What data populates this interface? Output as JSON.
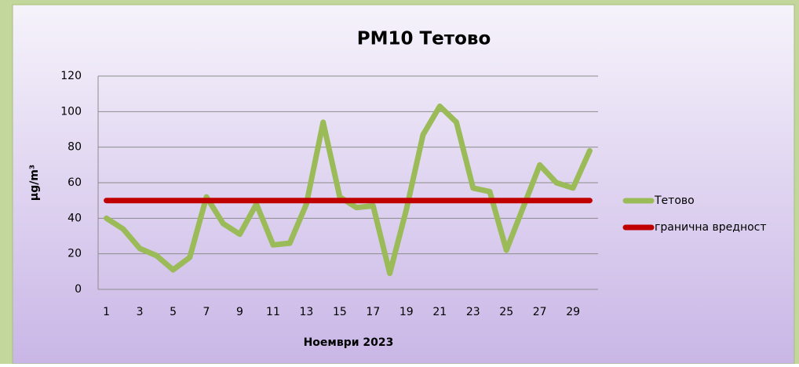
{
  "chart_data": {
    "type": "line",
    "title": "PM10 Тетово",
    "x_label": "Ноември 2023",
    "y_label": "μg/m³",
    "categories": [
      "1",
      null,
      "3",
      null,
      "5",
      null,
      "7",
      null,
      "9",
      null,
      "11",
      null,
      "13",
      null,
      "15",
      null,
      "17",
      null,
      "19",
      null,
      "21",
      null,
      "23",
      null,
      "25",
      null,
      "27",
      null,
      "29",
      null
    ],
    "series": [
      {
        "name": "Тетово",
        "color": "#9bbb59",
        "values": [
          40,
          34,
          23,
          19,
          11,
          18,
          52,
          37,
          31,
          48,
          25,
          26,
          48,
          94,
          52,
          46,
          47,
          9,
          45,
          87,
          103,
          94,
          57,
          55,
          22,
          46,
          70,
          60,
          57,
          78
        ]
      },
      {
        "name": "гранична вредност",
        "color": "#c00000",
        "values": [
          50,
          50,
          50,
          50,
          50,
          50,
          50,
          50,
          50,
          50,
          50,
          50,
          50,
          50,
          50,
          50,
          50,
          50,
          50,
          50,
          50,
          50,
          50,
          50,
          50,
          50,
          50,
          50,
          50,
          50
        ]
      }
    ],
    "ylim": [
      0,
      120
    ],
    "yticks": [
      0,
      20,
      40,
      60,
      80,
      100,
      120
    ],
    "grid": true,
    "legend": "right"
  }
}
